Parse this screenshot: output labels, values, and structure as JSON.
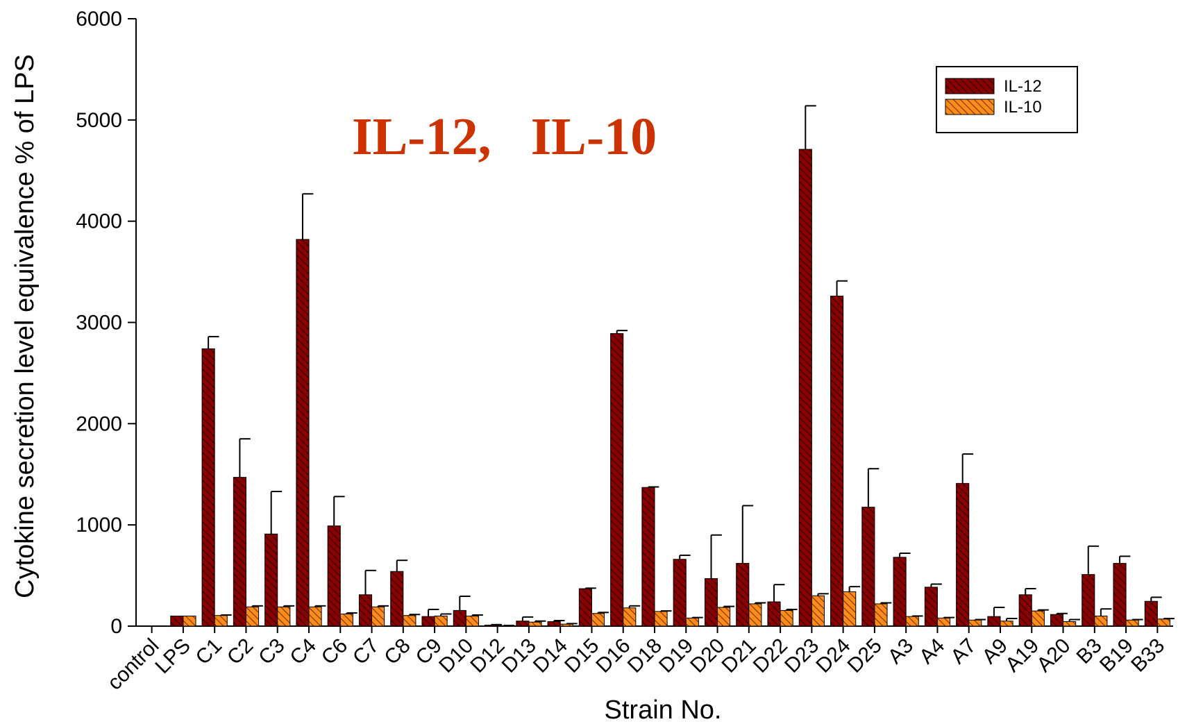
{
  "chart_data": {
    "type": "bar",
    "title": "IL-12,   IL-10",
    "xlabel": "Strain No.",
    "ylabel": "Cytokine secretion level equivalence % of LPS",
    "ylim": [
      0,
      6000
    ],
    "yticks": [
      0,
      1000,
      2000,
      3000,
      4000,
      5000,
      6000
    ],
    "legend_position": "top-right",
    "colors": {
      "il12": "#8b0000",
      "il10": "#ff8c1a",
      "title": "#cc3300"
    },
    "categories": [
      "control",
      "LPS",
      "C1",
      "C2",
      "C3",
      "C4",
      "C6",
      "C7",
      "C8",
      "C9",
      "D10",
      "D12",
      "D13",
      "D14",
      "D15",
      "D16",
      "D18",
      "D19",
      "D20",
      "D21",
      "D22",
      "D23",
      "D24",
      "D25",
      "A3",
      "A4",
      "A7",
      "A9",
      "A19",
      "A20",
      "B3",
      "B19",
      "B33"
    ],
    "series": [
      {
        "name": "IL-12",
        "values": [
          0,
          100,
          2740,
          1470,
          910,
          3820,
          990,
          310,
          540,
          95,
          155,
          10,
          50,
          45,
          370,
          2890,
          1370,
          660,
          470,
          620,
          240,
          4710,
          3260,
          1175,
          680,
          385,
          1410,
          95,
          310,
          115,
          510,
          620,
          245
        ],
        "errors": [
          0,
          0,
          120,
          380,
          420,
          450,
          290,
          240,
          110,
          70,
          140,
          5,
          40,
          10,
          5,
          30,
          5,
          40,
          430,
          570,
          170,
          430,
          150,
          380,
          40,
          30,
          290,
          90,
          60,
          10,
          280,
          70,
          40
        ]
      },
      {
        "name": "IL-10",
        "values": [
          0,
          100,
          105,
          190,
          190,
          190,
          120,
          190,
          105,
          100,
          100,
          5,
          40,
          20,
          125,
          180,
          145,
          80,
          185,
          220,
          155,
          300,
          340,
          220,
          95,
          80,
          60,
          50,
          150,
          45,
          100,
          60,
          70
        ],
        "errors": [
          0,
          0,
          5,
          10,
          10,
          10,
          10,
          10,
          10,
          20,
          10,
          2,
          10,
          5,
          10,
          20,
          5,
          5,
          10,
          10,
          10,
          20,
          50,
          10,
          5,
          5,
          5,
          25,
          10,
          20,
          70,
          5,
          5
        ]
      }
    ]
  }
}
